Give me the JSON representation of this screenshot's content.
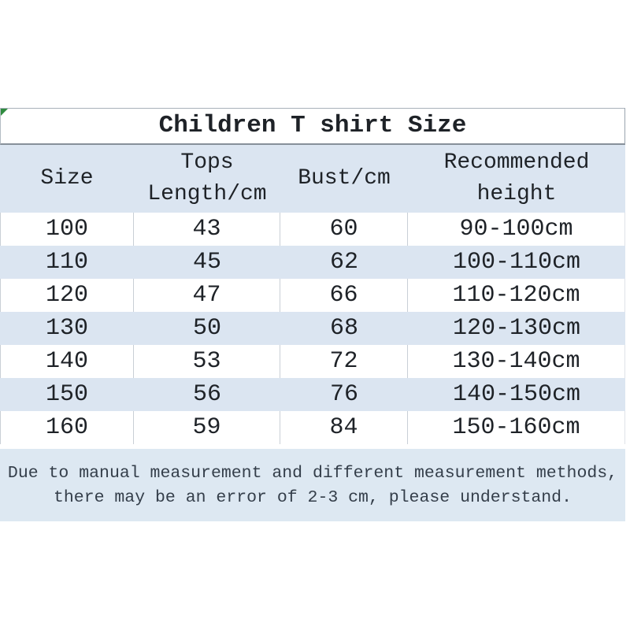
{
  "table": {
    "title": "Children T shirt Size",
    "columns": [
      {
        "id": "size",
        "lines": [
          "Size"
        ]
      },
      {
        "id": "tops-length",
        "lines": [
          "Tops",
          "Length/cm"
        ]
      },
      {
        "id": "bust",
        "lines": [
          "Bust/cm"
        ]
      },
      {
        "id": "recommended-height",
        "lines": [
          "Recommended",
          "height"
        ]
      }
    ],
    "rows": [
      [
        "100",
        "43",
        "60",
        "90-100cm"
      ],
      [
        "110",
        "45",
        "62",
        "100-110cm"
      ],
      [
        "120",
        "47",
        "66",
        "110-120cm"
      ],
      [
        "130",
        "50",
        "68",
        "120-130cm"
      ],
      [
        "140",
        "53",
        "72",
        "130-140cm"
      ],
      [
        "150",
        "56",
        "76",
        "140-150cm"
      ],
      [
        "160",
        "59",
        "84",
        "150-160cm"
      ]
    ]
  },
  "note": {
    "lines": [
      "Due to manual measurement and different measurement methods,",
      "there may be an error of 2-3 cm, please understand."
    ]
  },
  "colors": {
    "row_blue": "#dbe5f1",
    "note_blue": "#dde8f2",
    "separator_gray": "#c9cfd6",
    "title_border_gray": "#87909a",
    "text": "#1e2227",
    "note_text": "#343e4a",
    "corner_green": "#2f8b3f"
  }
}
